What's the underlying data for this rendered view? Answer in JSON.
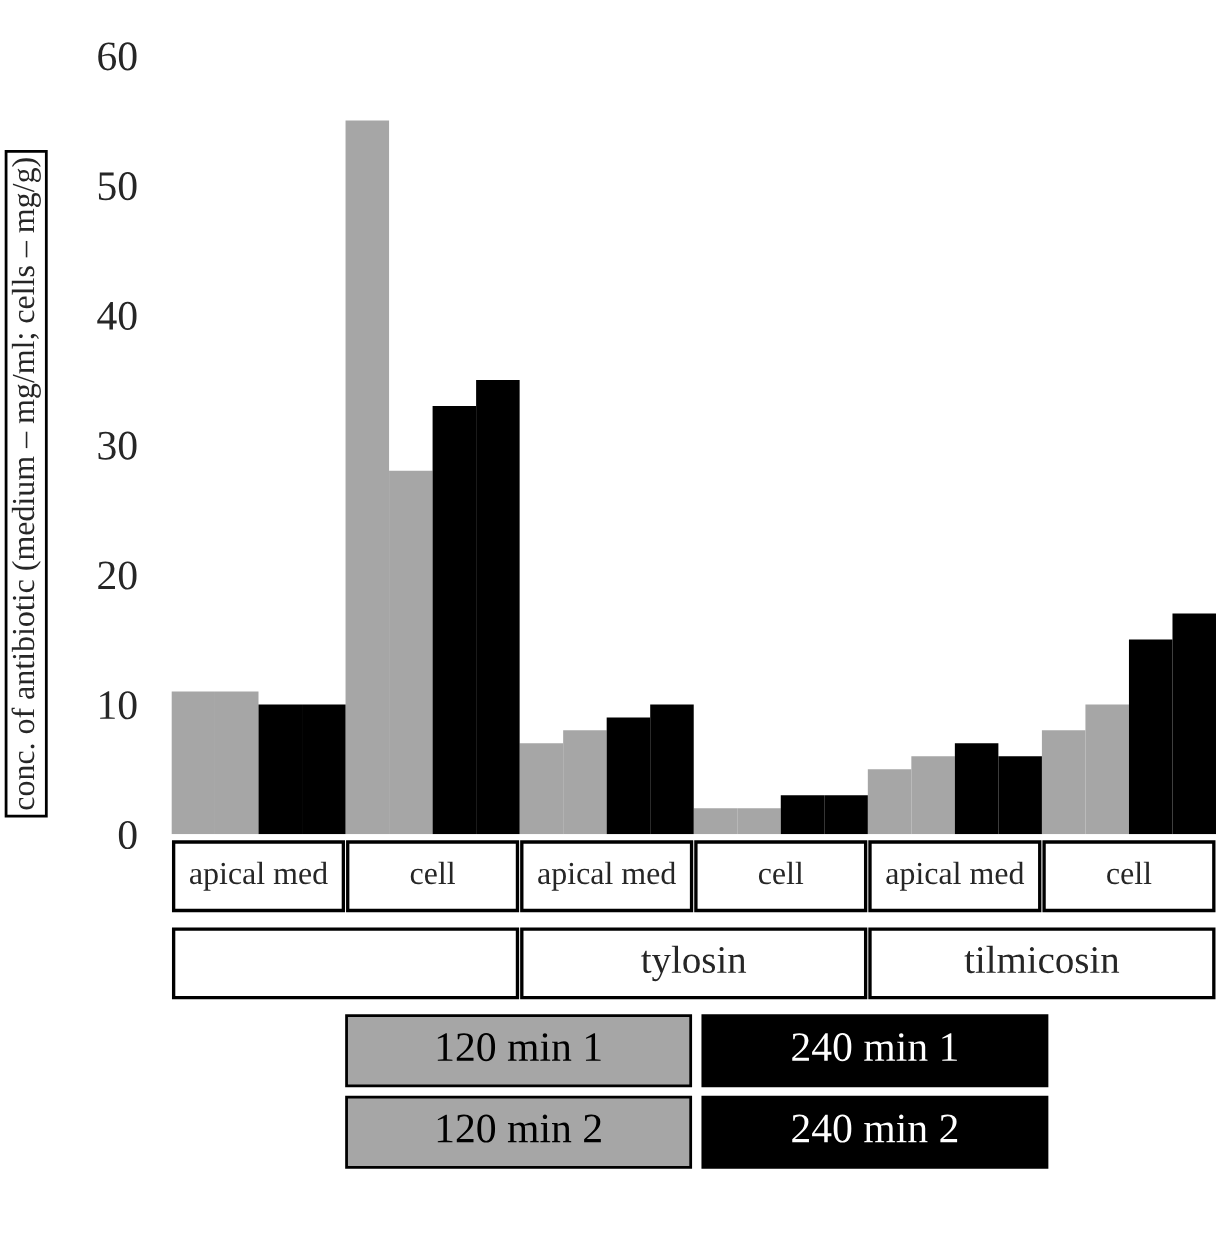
{
  "chart_data": {
    "type": "bar",
    "ylabel": "conc. of antibiotic (medium – mg/ml; cells – mg/g)",
    "categories": [
      "apical med",
      "cell",
      "apical med",
      "cell",
      "apical med",
      "cell"
    ],
    "series": [
      {
        "name": "120 min 1",
        "color": "#a6a6a6",
        "values": [
          11,
          55,
          7,
          2,
          5,
          8
        ]
      },
      {
        "name": "120 min 2",
        "color": "#a6a6a6",
        "values": [
          11,
          28,
          8,
          2,
          6,
          10
        ]
      },
      {
        "name": "240 min 1",
        "color": "#000000",
        "values": [
          10,
          33,
          9,
          3,
          7,
          15
        ]
      },
      {
        "name": "240 min 2",
        "color": "#000000",
        "values": [
          10,
          35,
          10,
          3,
          6,
          17
        ]
      }
    ],
    "annotations": [
      "tylosin",
      "tilmicosin"
    ],
    "ylim": [
      0,
      60
    ],
    "yticks": [
      0,
      10,
      20,
      30,
      40,
      50,
      60
    ],
    "legend": "bottom",
    "grid": false
  }
}
